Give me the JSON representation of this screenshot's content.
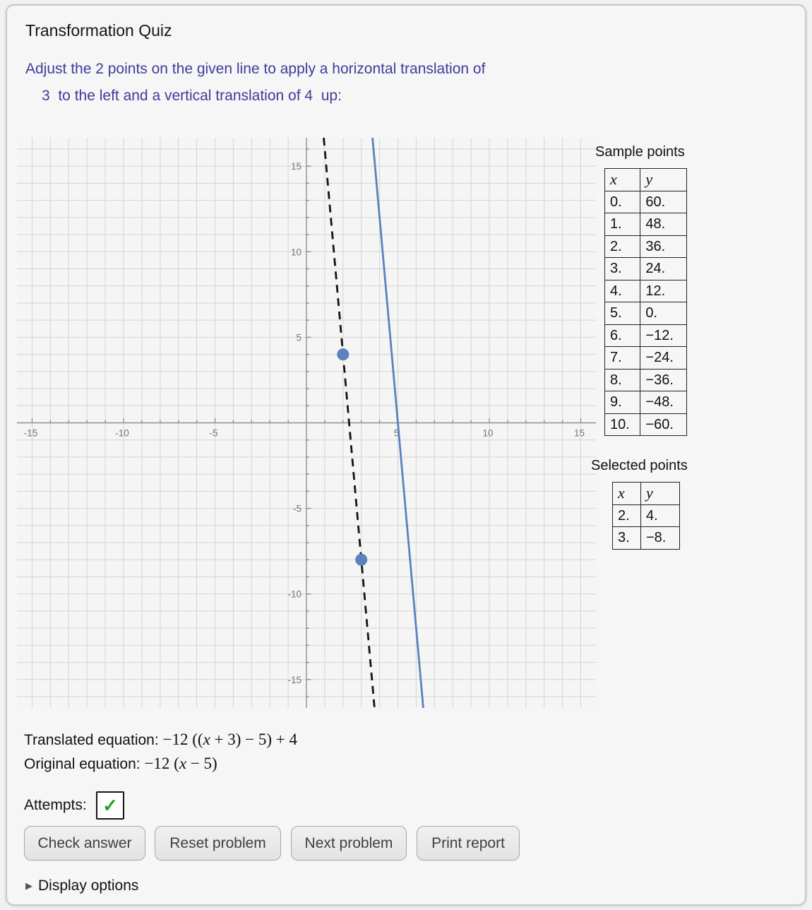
{
  "panel": {
    "title": "Transformation Quiz",
    "instruction_line1": "Adjust the 2 points on the given line to apply a horizontal translation of",
    "instruction_line2": "3  to the left and a vertical translation of 4  up:"
  },
  "chart_data": {
    "type": "line",
    "x_range": [
      -15.83,
      15.83
    ],
    "y_range": [
      -16.66,
      16.66
    ],
    "grid": true,
    "grid_step": 1,
    "x_tick_labels": [
      -15,
      -10,
      -5,
      5,
      10,
      15
    ],
    "y_tick_labels": [
      -15,
      -10,
      -5,
      5,
      10,
      15
    ],
    "series": [
      {
        "name": "original-line",
        "equation": "y = -12 (x - 5)",
        "slope": -12,
        "intercept": 60,
        "style": "solid",
        "color": "#5b82bd",
        "width": 2.8
      },
      {
        "name": "translated-line",
        "equation": "y = -12 ((x + 3) - 5) + 4",
        "slope": -12,
        "intercept": 28,
        "style": "dashed",
        "color": "#141414",
        "width": 2.8
      }
    ],
    "draggable_points": [
      {
        "x": 2,
        "y": 4
      },
      {
        "x": 3,
        "y": -8
      }
    ],
    "point_color": "#5b82bd",
    "point_radius": 8.5,
    "colors": {
      "grid": "#d4d4d4",
      "axis": "#8f8f8f",
      "tick_label": "#757575",
      "background": "#f5f5f5"
    }
  },
  "sample_points": {
    "heading": "Sample points",
    "columns": [
      "x",
      "y"
    ],
    "rows": [
      [
        "0.",
        "60."
      ],
      [
        "1.",
        "48."
      ],
      [
        "2.",
        "36."
      ],
      [
        "3.",
        "24."
      ],
      [
        "4.",
        "12."
      ],
      [
        "5.",
        "0."
      ],
      [
        "6.",
        "−12."
      ],
      [
        "7.",
        "−24."
      ],
      [
        "8.",
        "−36."
      ],
      [
        "9.",
        "−48."
      ],
      [
        "10.",
        "−60."
      ]
    ]
  },
  "selected_points": {
    "heading": "Selected points",
    "columns": [
      "x",
      "y"
    ],
    "rows": [
      [
        "2.",
        "4."
      ],
      [
        "3.",
        "−8."
      ]
    ]
  },
  "equations": {
    "translated": {
      "label": "Translated equation:",
      "parts": [
        "−12 ((",
        "x",
        " + 3) − 5) + 4"
      ]
    },
    "original": {
      "label": "Original equation:",
      "parts": [
        "−12 (",
        "x",
        " − 5)"
      ]
    }
  },
  "attempts": {
    "label": "Attempts:",
    "check": "✓"
  },
  "buttons": [
    {
      "label": "Check answer"
    },
    {
      "label": "Reset problem"
    },
    {
      "label": "Next problem"
    },
    {
      "label": "Print report"
    }
  ],
  "display_options": {
    "arrow": "▶",
    "label": "Display options"
  }
}
